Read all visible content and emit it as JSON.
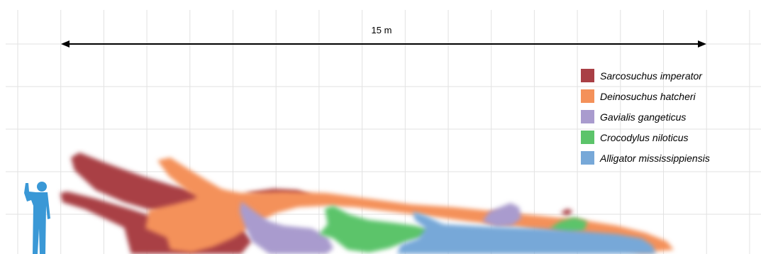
{
  "scale": {
    "label": "15 m"
  },
  "legend": [
    {
      "name": "Sarcosuchus imperator",
      "color": "#a93f45"
    },
    {
      "name": "Deinosuchus hatcheri",
      "color": "#f4915a"
    },
    {
      "name": "Gavialis gangeticus",
      "color": "#a99bce"
    },
    {
      "name": "Crocodylus niloticus",
      "color": "#5cc46a"
    },
    {
      "name": "Alligator mississippiensis",
      "color": "#77a8d8"
    }
  ],
  "colors": {
    "human": "#3a98d6",
    "grid": "#e2e2e2"
  },
  "icons": [
    "human-silhouette-icon",
    "double-arrow-icon"
  ]
}
